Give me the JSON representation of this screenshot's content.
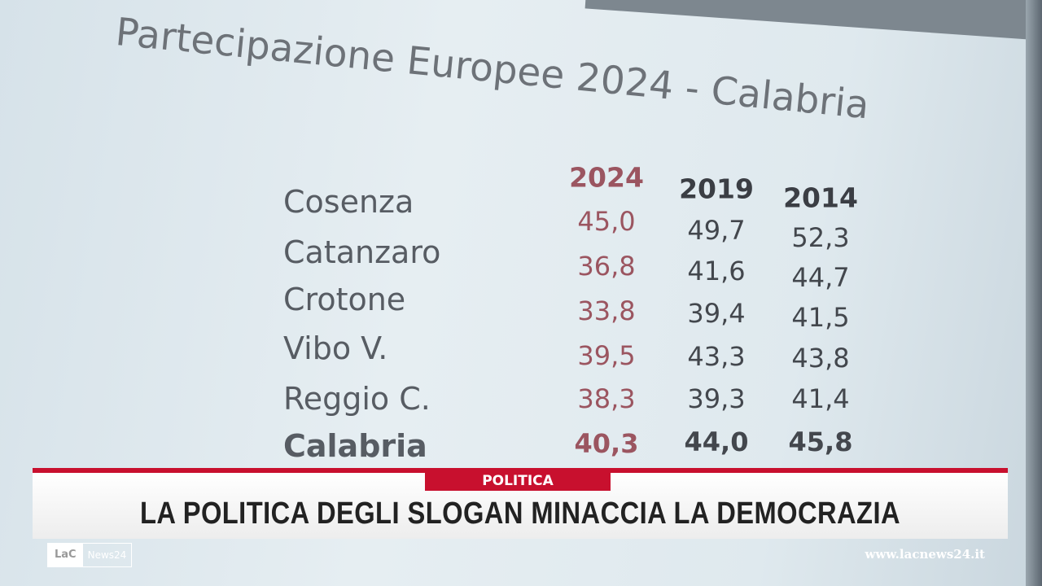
{
  "slide": {
    "title": "Partecipazione Europee 2024 - Calabria",
    "table": {
      "headers": [
        "2024",
        "2019",
        "2014"
      ],
      "rows": [
        [
          "Cosenza",
          "45,0",
          "49,7",
          "52,3"
        ],
        [
          "Catanzaro",
          "36,8",
          "41,6",
          "44,7"
        ],
        [
          "Crotone",
          "33,8",
          "39,4",
          "41,5"
        ],
        [
          "Vibo V.",
          "39,5",
          "43,3",
          "43,8"
        ],
        [
          "Reggio C.",
          "38,3",
          "39,3",
          "41,4"
        ],
        [
          "Calabria",
          "40,3",
          "44,0",
          "45,8"
        ]
      ]
    }
  },
  "banner": {
    "category": "POLITICA",
    "headline": "LA POLITICA DEGLI SLOGAN MINACCIA LA DEMOCRAZIA"
  },
  "logo": {
    "brand": "LaC",
    "sub": "News24"
  },
  "website": "www.lacnews24.it"
}
